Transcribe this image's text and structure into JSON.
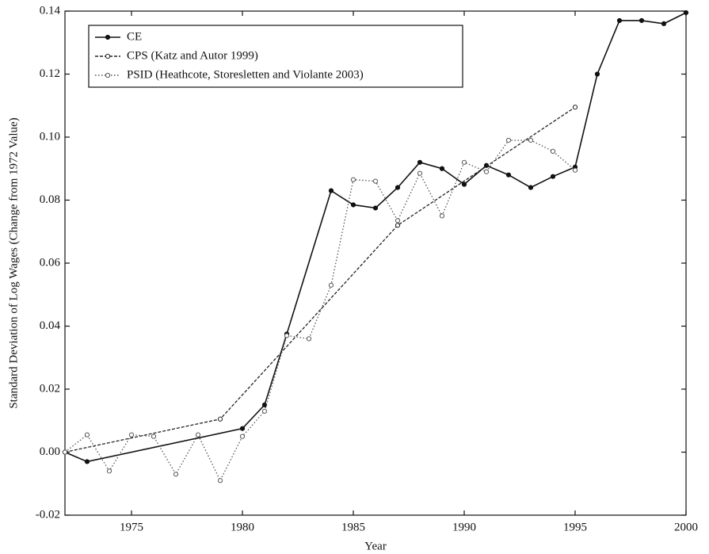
{
  "chart_data": {
    "type": "line",
    "x_label": "Year",
    "y_label": "Standard Deviation of Log Wages (Change from 1972 Value)",
    "xlim": [
      1972,
      2000
    ],
    "xticks": [
      1975,
      1980,
      1985,
      1990,
      1995,
      2000
    ],
    "ylim": [
      -0.02,
      0.14
    ],
    "yticks": [
      -0.02,
      {
        "value": 0,
        "label": "0.00"
      },
      0.02,
      0.04,
      0.06,
      0.08,
      {
        "value": 0.1,
        "label": "0.10"
      },
      0.12,
      0.14
    ],
    "legend": "upper-left",
    "series": [
      {
        "name": "CE",
        "color": "#111111",
        "dash": "solid",
        "x": [
          1972,
          1973,
          1980,
          1981,
          1982,
          1984,
          1985,
          1986,
          1987,
          1988,
          1989,
          1990,
          1991,
          1992,
          1993,
          1994,
          1995,
          1996,
          1997,
          1998,
          1999,
          2000
        ],
        "values": [
          0,
          -0.003,
          0.0075,
          0.015,
          0.0375,
          0.083,
          0.0785,
          0.0775,
          0.084,
          0.092,
          0.09,
          0.085,
          0.091,
          0.088,
          0.084,
          0.0875,
          0.0905,
          0.12,
          0.137,
          0.137,
          0.136,
          0.1395
        ]
      },
      {
        "name": "CPS (Katz and Autor 1999)",
        "color": "#222222",
        "dash": "dashed",
        "x": [
          1972,
          1979,
          1987,
          1995
        ],
        "values": [
          0,
          0.0105,
          0.072,
          0.1095
        ]
      },
      {
        "name": "PSID (Heathcote, Storesletten and Violante 2003)",
        "color": "#555555",
        "dash": "dotted",
        "x": [
          1972,
          1973,
          1974,
          1975,
          1976,
          1977,
          1978,
          1979,
          1980,
          1981,
          1982,
          1983,
          1984,
          1985,
          1986,
          1987,
          1988,
          1989,
          1990,
          1991,
          1992,
          1993,
          1994,
          1995
        ],
        "values": [
          0,
          0.0055,
          -0.006,
          0.0055,
          0.005,
          -0.007,
          0.0055,
          -0.009,
          0.005,
          0.013,
          0.037,
          0.036,
          0.053,
          0.0865,
          0.086,
          0.0735,
          0.0885,
          0.075,
          0.092,
          0.089,
          0.099,
          0.099,
          0.0955,
          0.0895
        ]
      }
    ]
  }
}
